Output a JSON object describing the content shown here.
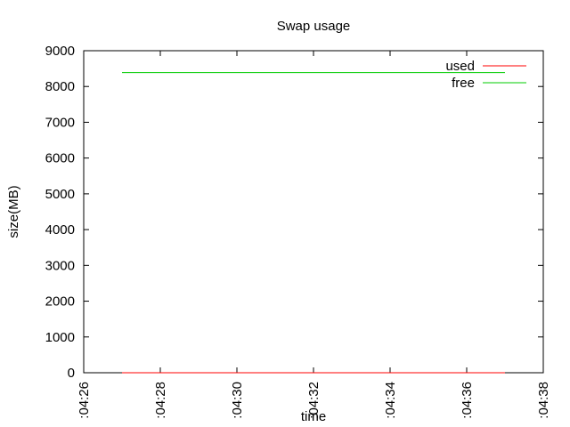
{
  "chart_data": {
    "type": "line",
    "title": "Swap usage",
    "xlabel": "time",
    "ylabel": "size(MB)",
    "x_axis": {
      "ticks": [
        ":04:26",
        ":04:28",
        ":04:30",
        ":04:32",
        ":04:34",
        ":04:36",
        ":04:38"
      ],
      "range": [
        ":04:26",
        ":04:38"
      ],
      "label_orientation": "vertical"
    },
    "ylim": [
      0,
      9000
    ],
    "yticks": [
      0,
      1000,
      2000,
      3000,
      4000,
      5000,
      6000,
      7000,
      8000,
      9000
    ],
    "grid": false,
    "legend_position": "top-right",
    "series": [
      {
        "name": "used",
        "color": "#ff0000",
        "x": [
          ":04:27",
          ":04:37"
        ],
        "y": [
          0,
          0
        ]
      },
      {
        "name": "free",
        "color": "#00cc00",
        "x": [
          ":04:27",
          ":04:37"
        ],
        "y": [
          8388,
          8388
        ]
      }
    ]
  }
}
